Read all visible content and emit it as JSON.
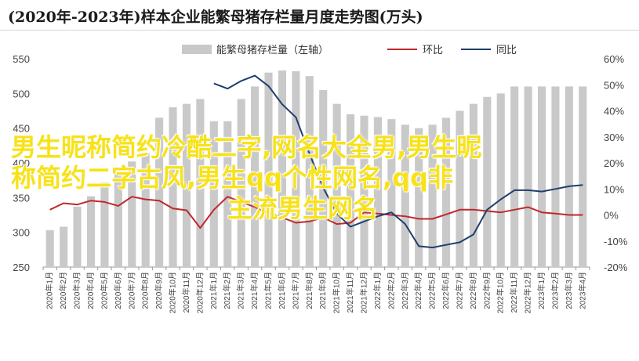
{
  "title": "(2020年-2023年)样本企业能繁母猪存栏量月度走势图(万头)",
  "overlay": {
    "line1": "男生昵称简约冷酷二字,网名大全男,男生昵",
    "line2": "称简约二字古风,男生qq个性网名,qq非",
    "line3": "主流男生网名"
  },
  "colors": {
    "bar": "#c9c9c9",
    "huanbi": "#c0282c",
    "tongbi": "#1f3e6e"
  },
  "chart_data": {
    "type": "bar",
    "categories": [
      "2020年1月",
      "2020年2月",
      "2020年3月",
      "2020年4月",
      "2020年5月",
      "2020年6月",
      "2020年7月",
      "2020年8月",
      "2020年9月",
      "2020年10月",
      "2020年11月",
      "2020年12月",
      "2021年1月",
      "2021年2月",
      "2021年3月",
      "2021年4月",
      "2021年5月",
      "2021年6月",
      "2021年7月",
      "2021年8月",
      "2021年9月",
      "2021年10月",
      "2021年11月",
      "2021年12月",
      "2022年1月",
      "2022年2月",
      "2022年3月",
      "2022年4月",
      "2022年5月",
      "2022年6月",
      "2022年7月",
      "2022年8月",
      "2022年9月",
      "2022年10月",
      "2022年11月",
      "2022年12月",
      "2023年1月",
      "2023年2月",
      "2023年3月",
      "2023年4月"
    ],
    "left_axis": {
      "ylim": [
        250,
        550
      ],
      "ticks": [
        "250",
        "300",
        "350",
        "400",
        "450",
        "500",
        "550"
      ]
    },
    "right_axis": {
      "ylim": [
        -20,
        60
      ],
      "ticks": [
        "-20%",
        "-10%",
        "0%",
        "10%",
        "20%",
        "30%",
        "40%",
        "50%",
        "60%"
      ]
    },
    "legend_position": "top",
    "series": [
      {
        "name": "能繁母猪存栏量（左轴）",
        "type": "bar",
        "axis": "left",
        "values": [
          303,
          308,
          337,
          352,
          372,
          390,
          402,
          414,
          465,
          480,
          485,
          492,
          460,
          460,
          492,
          510,
          530,
          533,
          532,
          525,
          505,
          485,
          470,
          468,
          466,
          463,
          455,
          450,
          455,
          465,
          475,
          485,
          495,
          500,
          510,
          510,
          510,
          510,
          510,
          510
        ]
      },
      {
        "name": "环比",
        "type": "line",
        "axis": "right",
        "values": [
          2,
          4.5,
          4,
          5.5,
          5,
          3.5,
          7,
          6,
          5.5,
          2.5,
          1.8,
          -5,
          2,
          7,
          5,
          3,
          0.5,
          -1,
          -3,
          -2.5,
          -1,
          -3.5,
          -3,
          1,
          0.5,
          0,
          -0.5,
          -1.5,
          -1.5,
          0.2,
          2,
          2,
          1.5,
          1,
          2,
          3,
          1,
          0.5,
          0,
          0
        ]
      },
      {
        "name": "同比",
        "type": "line",
        "axis": "right",
        "values": [
          null,
          null,
          null,
          null,
          null,
          null,
          null,
          null,
          null,
          null,
          null,
          null,
          50.5,
          48.5,
          51.5,
          53.5,
          49.5,
          42.5,
          37.5,
          23.5,
          10.5,
          0.5,
          -4.5,
          -2.5,
          -0.5,
          1,
          -3.5,
          -12,
          -12.5,
          -11.5,
          -10.5,
          -7.5,
          2,
          6,
          9.5,
          9.5,
          9,
          10,
          11,
          11.5
        ]
      }
    ]
  }
}
